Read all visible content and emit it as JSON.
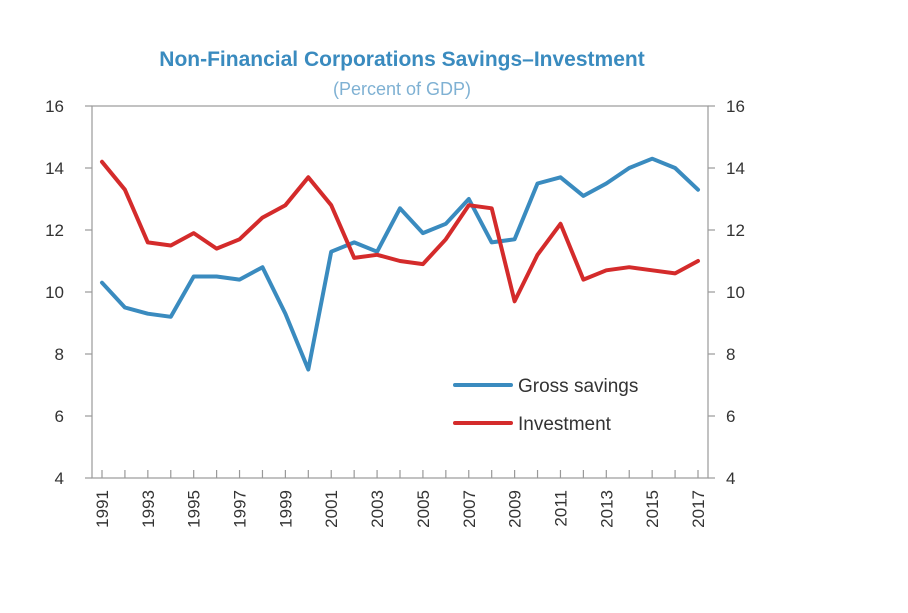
{
  "chart_data": {
    "type": "line",
    "title": "Non-Financial Corporations Savings–Investment",
    "subtitle": "(Percent of GDP)",
    "xlabel": "",
    "ylabel": "",
    "x": [
      1991,
      1992,
      1993,
      1994,
      1995,
      1996,
      1997,
      1998,
      1999,
      2000,
      2001,
      2002,
      2003,
      2004,
      2005,
      2006,
      2007,
      2008,
      2009,
      2010,
      2011,
      2012,
      2013,
      2014,
      2015,
      2016,
      2017
    ],
    "x_tick_labels": [
      "1991",
      "1993",
      "1995",
      "1997",
      "1999",
      "2001",
      "2003",
      "2005",
      "2007",
      "2009",
      "2011",
      "2013",
      "2015",
      "2017"
    ],
    "ylim": [
      4,
      16
    ],
    "y_ticks": [
      4,
      6,
      8,
      10,
      12,
      14,
      16
    ],
    "y_tick_labels_left": [
      "4",
      "6",
      "8",
      "10",
      "12",
      "14",
      "16"
    ],
    "y_tick_labels_right": [
      "4",
      "6",
      "8",
      "10",
      "12",
      "14",
      "16"
    ],
    "grid": false,
    "legend_position": "bottom-right",
    "series": [
      {
        "name": "Gross savings",
        "color": "#3a8bbf",
        "values": [
          10.3,
          9.5,
          9.3,
          9.2,
          10.5,
          10.5,
          10.4,
          10.8,
          9.3,
          7.5,
          11.3,
          11.6,
          11.3,
          12.7,
          11.9,
          12.2,
          13.0,
          11.6,
          11.7,
          13.5,
          13.7,
          13.1,
          13.5,
          14.0,
          14.3,
          14.0,
          13.3
        ]
      },
      {
        "name": "Investment",
        "color": "#d42b2b",
        "values": [
          14.2,
          13.3,
          11.6,
          11.5,
          11.9,
          11.4,
          11.7,
          12.4,
          12.8,
          13.7,
          12.8,
          11.1,
          11.2,
          11.0,
          10.9,
          11.7,
          12.8,
          12.7,
          9.7,
          11.2,
          12.2,
          10.4,
          10.7,
          10.8,
          10.7,
          10.6,
          11.0
        ]
      }
    ],
    "colors": {
      "title": "#3a8bbf",
      "subtitle": "#7fb1d3",
      "axis": "#999999"
    }
  }
}
